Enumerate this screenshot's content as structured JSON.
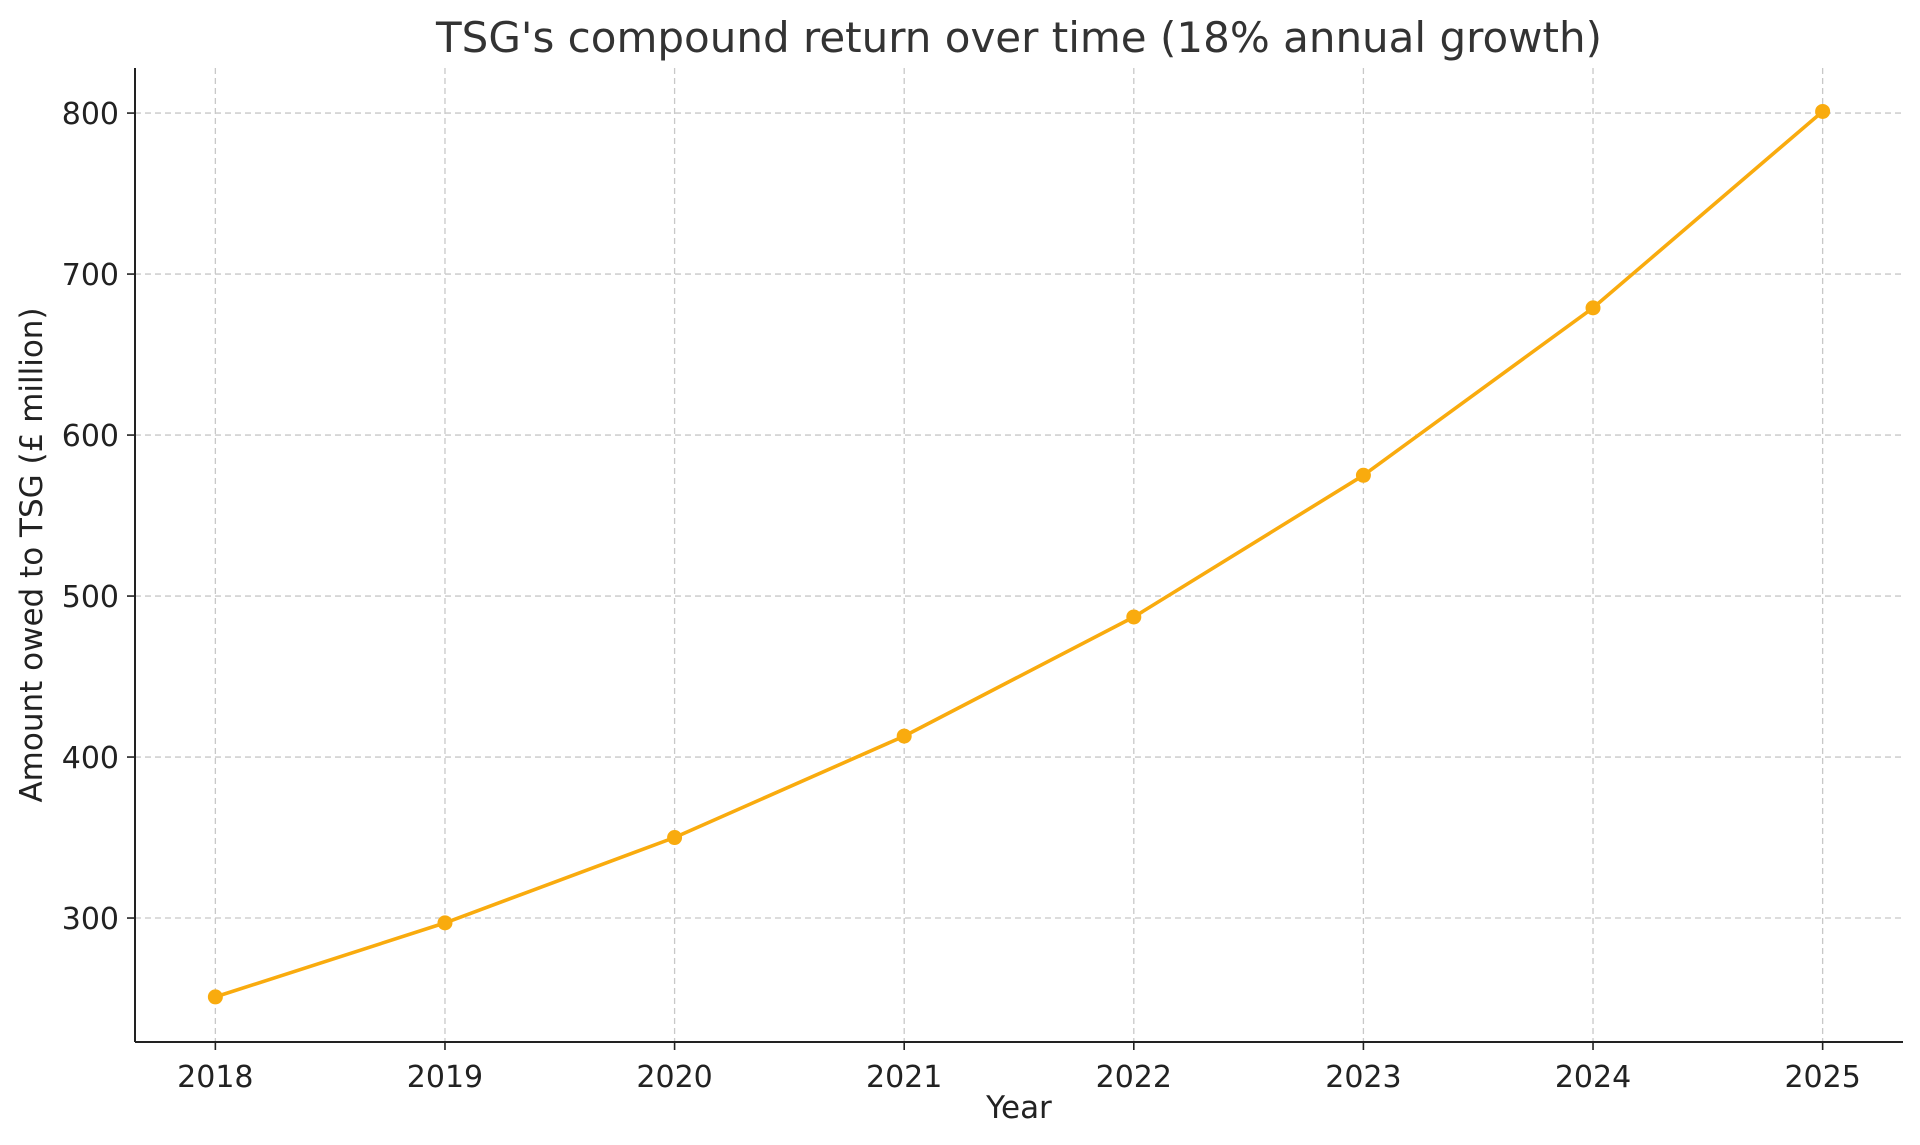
{
  "chart_data": {
    "type": "line",
    "title": "TSG's compound return over time (18% annual growth)",
    "xlabel": "Year",
    "ylabel": "Amount owed to TSG (£ million)",
    "x": [
      2018,
      2019,
      2020,
      2021,
      2022,
      2023,
      2024,
      2025
    ],
    "x_tick_labels": [
      "2018",
      "2019",
      "2020",
      "2021",
      "2022",
      "2023",
      "2024",
      "2025"
    ],
    "series": [
      {
        "values": [
          251,
          297,
          350,
          413,
          487,
          575,
          679,
          801
        ],
        "color": "#f9ab0e"
      }
    ],
    "ylim": [
      223,
      828
    ],
    "xlim": [
      2017.65,
      2025.35
    ],
    "y_ticks": [
      300,
      400,
      500,
      600,
      700,
      800
    ],
    "y_tick_labels": [
      "300",
      "400",
      "500",
      "600",
      "700",
      "800"
    ],
    "grid": true,
    "marker": "circle"
  }
}
